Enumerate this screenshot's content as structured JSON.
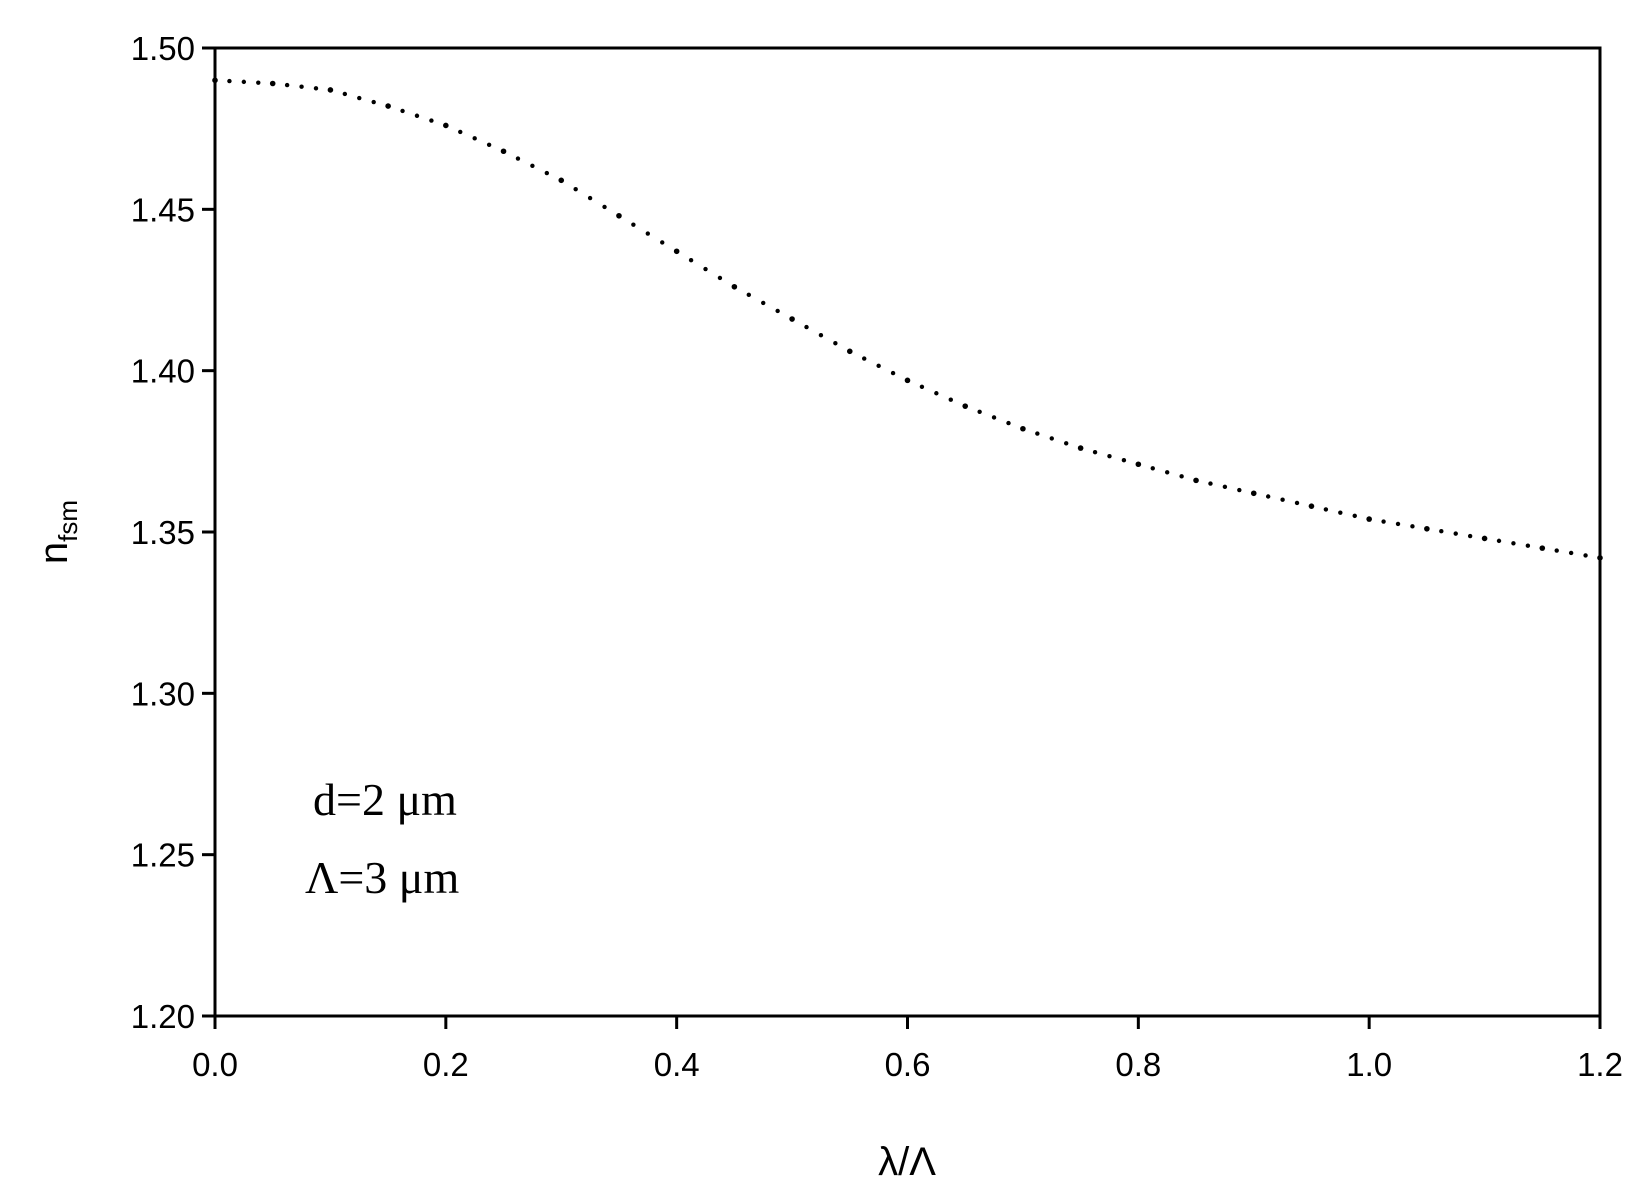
{
  "chart_data": {
    "type": "scatter",
    "title": "",
    "xlabel": "λ/Λ",
    "ylabel": "n",
    "ylabel_subscript": "fsm",
    "xlim": [
      0.0,
      1.2
    ],
    "ylim": [
      1.2,
      1.5
    ],
    "x_ticks": [
      0.0,
      0.2,
      0.4,
      0.6,
      0.8,
      1.0,
      1.2
    ],
    "x_tick_labels": [
      "0.0",
      "0.2",
      "0.4",
      "0.6",
      "0.8",
      "1.0",
      "1.2"
    ],
    "y_ticks": [
      1.2,
      1.25,
      1.3,
      1.35,
      1.4,
      1.45,
      1.5
    ],
    "y_tick_labels": [
      "1.20",
      "1.25",
      "1.30",
      "1.35",
      "1.40",
      "1.45",
      "1.50"
    ],
    "grid": false,
    "legend": "none",
    "annotations": [
      "d=2 μm",
      "Λ=3 μm"
    ],
    "series": [
      {
        "x": [
          0.0,
          0.05,
          0.1,
          0.15,
          0.2,
          0.25,
          0.3,
          0.35,
          0.4,
          0.45,
          0.5,
          0.55,
          0.6,
          0.65,
          0.7,
          0.75,
          0.8,
          0.85,
          0.9,
          0.95,
          1.0,
          1.05,
          1.1,
          1.15,
          1.2
        ],
        "y": [
          1.49,
          1.489,
          1.487,
          1.482,
          1.476,
          1.468,
          1.459,
          1.448,
          1.437,
          1.426,
          1.416,
          1.406,
          1.397,
          1.389,
          1.382,
          1.376,
          1.371,
          1.366,
          1.362,
          1.358,
          1.354,
          1.351,
          1.348,
          1.345,
          1.342
        ],
        "color": "#000000",
        "marker": "dot",
        "style": "dotted"
      }
    ]
  }
}
